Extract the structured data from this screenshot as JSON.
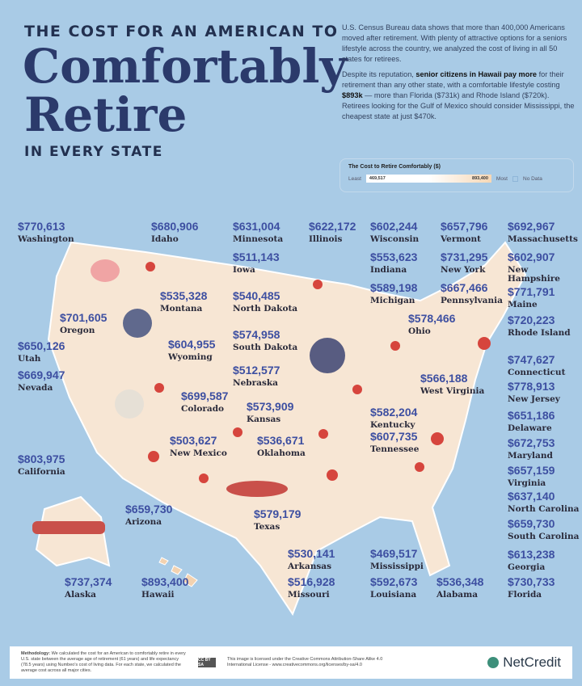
{
  "title": {
    "line1": "THE COST FOR AN AMERICAN TO",
    "line2": "Comfortably",
    "line3": "Retire",
    "line4": "IN EVERY STATE"
  },
  "intro": {
    "p1": "U.S. Census Bureau data shows that more than 400,000 Americans moved after retirement. With plenty of attractive options for a seniors lifestyle across the country, we analyzed the cost of living in all 50 states for retirees.",
    "p2a": "Despite its reputation, ",
    "p2b": "senior citizens in Hawaii pay more",
    "p2c": " for their retirement than any other state, with a comfortable lifestyle costing ",
    "p2d": "$893k",
    "p2e": " — more than Florida ($731k) and Rhode Island ($720k). Retirees looking for the Gulf of Mexico should consider Mississippi, the cheapest state at just $470k."
  },
  "legend": {
    "title": "The Cost to Retire Comfortably ($)",
    "least": "Least",
    "min": "469,517",
    "max": "893,400",
    "most": "Most",
    "no_data": "No Data",
    "colors": {
      "low": "#ffffff",
      "high": "#f6d7b5",
      "no_data": "#a9cbe6"
    }
  },
  "states": [
    {
      "name": "Washington",
      "value": "$770,613"
    },
    {
      "name": "Idaho",
      "value": "$680,906"
    },
    {
      "name": "Minnesota",
      "value": "$631,004"
    },
    {
      "name": "Illinois",
      "value": "$622,172"
    },
    {
      "name": "Wisconsin",
      "value": "$602,244"
    },
    {
      "name": "Vermont",
      "value": "$657,796"
    },
    {
      "name": "Massachusetts",
      "value": "$692,967"
    },
    {
      "name": "Iowa",
      "value": "$511,143"
    },
    {
      "name": "Indiana",
      "value": "$553,623"
    },
    {
      "name": "New York",
      "value": "$731,295"
    },
    {
      "name": "New Hampshire",
      "value": "$602,907"
    },
    {
      "name": "Montana",
      "value": "$535,328"
    },
    {
      "name": "North Dakota",
      "value": "$540,485"
    },
    {
      "name": "Michigan",
      "value": "$589,198"
    },
    {
      "name": "Pennsylvania",
      "value": "$667,466"
    },
    {
      "name": "Maine",
      "value": "$771,791"
    },
    {
      "name": "Oregon",
      "value": "$701,605"
    },
    {
      "name": "Rhode Island",
      "value": "$720,223"
    },
    {
      "name": "South Dakota",
      "value": "$574,958"
    },
    {
      "name": "Ohio",
      "value": "$578,466"
    },
    {
      "name": "Wyoming",
      "value": "$604,955"
    },
    {
      "name": "Utah",
      "value": "$650,126"
    },
    {
      "name": "Nevada",
      "value": "$669,947"
    },
    {
      "name": "Nebraska",
      "value": "$512,577"
    },
    {
      "name": "Connecticut",
      "value": "$747,627"
    },
    {
      "name": "West Virginia",
      "value": "$566,188"
    },
    {
      "name": "New Jersey",
      "value": "$778,913"
    },
    {
      "name": "Colorado",
      "value": "$699,587"
    },
    {
      "name": "Kansas",
      "value": "$573,909"
    },
    {
      "name": "Kentucky",
      "value": "$582,204"
    },
    {
      "name": "Delaware",
      "value": "$651,186"
    },
    {
      "name": "Tennessee",
      "value": "$607,735"
    },
    {
      "name": "Oklahoma",
      "value": "$536,671"
    },
    {
      "name": "New Mexico",
      "value": "$503,627"
    },
    {
      "name": "Maryland",
      "value": "$672,753"
    },
    {
      "name": "California",
      "value": "$803,975"
    },
    {
      "name": "Virginia",
      "value": "$657,159"
    },
    {
      "name": "Arizona",
      "value": "$659,730"
    },
    {
      "name": "North Carolina",
      "value": "$637,140"
    },
    {
      "name": "Texas",
      "value": "$579,179"
    },
    {
      "name": "South Carolina",
      "value": "$659,730"
    },
    {
      "name": "Arkansas",
      "value": "$530,141"
    },
    {
      "name": "Mississippi",
      "value": "$469,517"
    },
    {
      "name": "Georgia",
      "value": "$613,238"
    },
    {
      "name": "Alaska",
      "value": "$737,374"
    },
    {
      "name": "Hawaii",
      "value": "$893,400"
    },
    {
      "name": "Missouri",
      "value": "$516,928"
    },
    {
      "name": "Louisiana",
      "value": "$592,673"
    },
    {
      "name": "Alabama",
      "value": "$536,348"
    },
    {
      "name": "Florida",
      "value": "$730,733"
    }
  ],
  "footer": {
    "methodology_label": "Methodology:",
    "methodology": " We calculated the cost for an American to comfortably retire in every U.S. state between the average age of retirement (61 years) and life expectancy (78.5 years) using Numbeo's cost of living data. For each state, we calculated the average cost across all major cities.",
    "cc_badge": "CC BY SA",
    "license": "This image is licensed under the Creative Commons Attribution-Share Alike 4.0 International License - www.creativecommons.org/licenses/by-sa/4.0",
    "brand": "NetCredit"
  }
}
